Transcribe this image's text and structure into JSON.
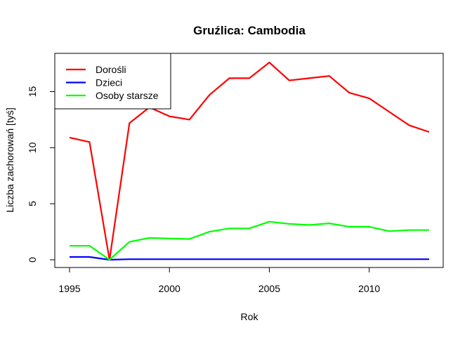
{
  "chart_data": {
    "type": "line",
    "title": "Gruźlica: Cambodia",
    "xlabel": "Rok",
    "ylabel": "Liczba zachorowań [tyś]",
    "xlim": [
      1995,
      2013
    ],
    "ylim": [
      0,
      17.6
    ],
    "x_ticks": [
      1995,
      2000,
      2005,
      2010
    ],
    "y_ticks": [
      0,
      5,
      10,
      15
    ],
    "legend_position": "top-left",
    "grid": false,
    "x": [
      1995,
      1996,
      1997,
      1998,
      1999,
      2000,
      2001,
      2002,
      2003,
      2004,
      2005,
      2006,
      2007,
      2008,
      2009,
      2010,
      2011,
      2012,
      2013
    ],
    "series": [
      {
        "name": "Dorośli",
        "color": "#ff0000",
        "values": [
          10.9,
          10.5,
          0.0,
          12.2,
          13.6,
          12.8,
          12.5,
          14.7,
          16.2,
          16.2,
          17.6,
          16.0,
          16.2,
          16.4,
          14.9,
          14.4,
          13.2,
          12.0,
          11.4
        ]
      },
      {
        "name": "Dzieci",
        "color": "#0000ff",
        "values": [
          0.25,
          0.25,
          0.0,
          0.05,
          0.05,
          0.05,
          0.05,
          0.05,
          0.05,
          0.05,
          0.05,
          0.05,
          0.05,
          0.05,
          0.05,
          0.05,
          0.05,
          0.05,
          0.05
        ]
      },
      {
        "name": "Osoby starsze",
        "color": "#00ff00",
        "values": [
          1.25,
          1.25,
          0.0,
          1.6,
          1.95,
          1.9,
          1.85,
          2.5,
          2.8,
          2.8,
          3.4,
          3.2,
          3.1,
          3.25,
          2.95,
          2.95,
          2.55,
          2.65,
          2.65
        ]
      }
    ]
  }
}
